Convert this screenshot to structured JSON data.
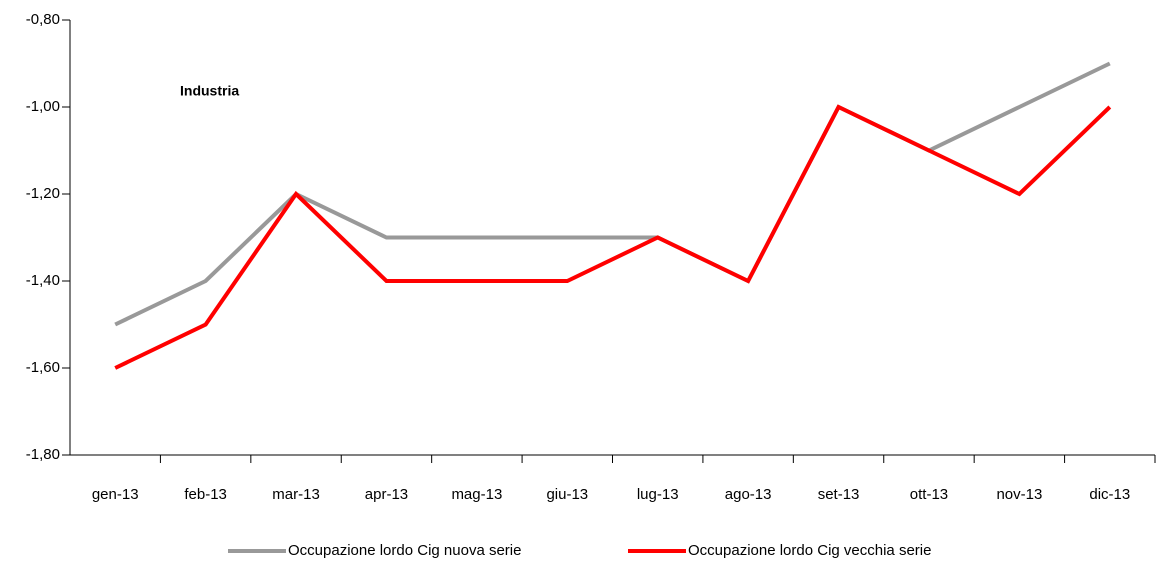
{
  "chart_data": {
    "type": "line",
    "annotation": "Industria",
    "categories": [
      "gen-13",
      "feb-13",
      "mar-13",
      "apr-13",
      "mag-13",
      "giu-13",
      "lug-13",
      "ago-13",
      "set-13",
      "ott-13",
      "nov-13",
      "dic-13"
    ],
    "series": [
      {
        "name": "Occupazione lordo Cig nuova serie",
        "color": "#999999",
        "values": [
          -1.5,
          -1.4,
          -1.2,
          -1.3,
          -1.3,
          -1.3,
          -1.3,
          -1.4,
          -1.0,
          -1.1,
          -1.0,
          -0.9
        ]
      },
      {
        "name": "Occupazione lordo Cig vecchia serie",
        "color": "#ff0000",
        "values": [
          -1.6,
          -1.5,
          -1.2,
          -1.4,
          -1.4,
          -1.4,
          -1.3,
          -1.4,
          -1.0,
          -1.1,
          -1.2,
          -1.0
        ]
      }
    ],
    "ylim": [
      -1.8,
      -0.8
    ],
    "yticks": [
      {
        "value": -0.8,
        "label": "-0,80"
      },
      {
        "value": -1.0,
        "label": "-1,00"
      },
      {
        "value": -1.2,
        "label": "-1,20"
      },
      {
        "value": -1.4,
        "label": "-1,40"
      },
      {
        "value": -1.6,
        "label": "-1,60"
      },
      {
        "value": -1.8,
        "label": "-1,80"
      }
    ],
    "grid": false,
    "legend": "bottom"
  }
}
